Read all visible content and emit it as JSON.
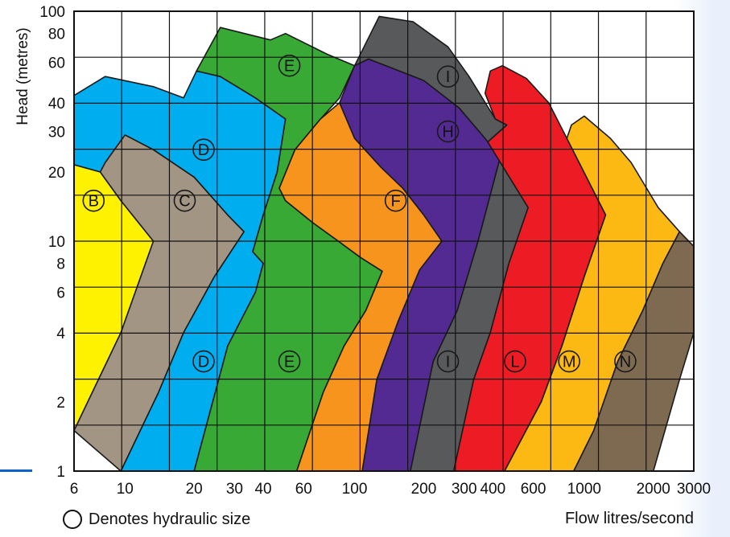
{
  "chart_data": {
    "type": "area",
    "title": "",
    "xlabel": "Flow litres/second",
    "ylabel": "Head (metres)",
    "x_scale": "log",
    "y_scale": "log",
    "xlim": [
      6,
      3000
    ],
    "ylim": [
      1,
      100
    ],
    "grid": true,
    "x_tick_labels": [
      "6",
      "10",
      "20",
      "30",
      "40",
      "60",
      "100",
      "200",
      "300",
      "400",
      "600",
      "1000",
      "2000",
      "3000"
    ],
    "y_tick_labels": [
      "1",
      "2",
      "4",
      "6",
      "8",
      "10",
      "20",
      "30",
      "40",
      "60",
      "80",
      "100"
    ],
    "x_ticks": [
      6,
      10,
      20,
      30,
      40,
      60,
      100,
      200,
      300,
      400,
      600,
      1000,
      2000,
      3000
    ],
    "y_ticks": [
      1,
      2,
      4,
      6,
      8,
      10,
      20,
      30,
      40,
      60,
      80,
      100
    ],
    "series": [
      {
        "name": "B",
        "color": "#fff200",
        "labels": [
          [
            7.3,
            15
          ]
        ],
        "polygon": [
          [
            6,
            21.5
          ],
          [
            7.8,
            20
          ],
          [
            9.6,
            15
          ],
          [
            13.3,
            10
          ],
          [
            9.6,
            4
          ],
          [
            6,
            1.5
          ]
        ]
      },
      {
        "name": "C",
        "color": "#a39584",
        "labels": [
          [
            18.2,
            15
          ]
        ],
        "polygon": [
          [
            6,
            1.5
          ],
          [
            9.6,
            4
          ],
          [
            13.3,
            10
          ],
          [
            9.6,
            15
          ],
          [
            7.8,
            20
          ],
          [
            8.2,
            22
          ],
          [
            10,
            29
          ],
          [
            13.3,
            25
          ],
          [
            20,
            19
          ],
          [
            28,
            13
          ],
          [
            33,
            11
          ],
          [
            24.5,
            7
          ],
          [
            18,
            4
          ],
          [
            14,
            2.2
          ],
          [
            9.6,
            1
          ]
        ]
      },
      {
        "name": "D",
        "color": "#00aeef",
        "labels": [
          [
            22,
            25
          ],
          [
            22,
            3
          ]
        ],
        "polygon": [
          [
            9.6,
            1
          ],
          [
            14,
            2.2
          ],
          [
            18,
            4
          ],
          [
            24.5,
            7
          ],
          [
            33,
            11
          ],
          [
            28,
            13
          ],
          [
            20,
            19
          ],
          [
            13.3,
            25
          ],
          [
            10,
            29
          ],
          [
            8.2,
            22
          ],
          [
            7.8,
            20
          ],
          [
            6,
            21.5
          ],
          [
            6,
            43
          ],
          [
            8.2,
            52
          ],
          [
            13.3,
            47
          ],
          [
            18,
            42
          ],
          [
            20.5,
            55
          ],
          [
            26,
            52
          ],
          [
            37,
            42
          ],
          [
            50,
            34
          ],
          [
            46,
            20
          ],
          [
            40,
            13
          ],
          [
            36,
            9
          ],
          [
            40,
            8
          ],
          [
            37,
            6
          ],
          [
            28,
            3.5
          ],
          [
            20,
            1
          ]
        ]
      },
      {
        "name": "E",
        "color": "#39a935",
        "labels": [
          [
            52,
            58
          ],
          [
            52,
            3
          ]
        ],
        "polygon": [
          [
            20,
            1
          ],
          [
            28,
            3.5
          ],
          [
            37,
            6
          ],
          [
            40,
            8
          ],
          [
            36,
            9
          ],
          [
            40,
            13
          ],
          [
            46,
            20
          ],
          [
            50,
            34
          ],
          [
            37,
            42
          ],
          [
            26,
            52
          ],
          [
            20.5,
            55
          ],
          [
            26,
            85
          ],
          [
            43,
            75
          ],
          [
            50,
            80
          ],
          [
            76,
            65
          ],
          [
            100,
            58
          ],
          [
            86,
            42
          ],
          [
            71,
            34
          ],
          [
            55,
            25
          ],
          [
            47,
            17
          ],
          [
            50,
            15
          ],
          [
            66,
            12
          ],
          [
            85,
            10
          ],
          [
            106,
            8.5
          ],
          [
            132,
            7.4
          ],
          [
            112,
            5
          ],
          [
            90,
            3.5
          ],
          [
            73,
            2.2
          ],
          [
            56,
            1
          ]
        ]
      },
      {
        "name": "F",
        "color": "#f7941d",
        "labels": [
          [
            151,
            15
          ]
        ],
        "polygon": [
          [
            56,
            1
          ],
          [
            73,
            2.2
          ],
          [
            90,
            3.5
          ],
          [
            112,
            5
          ],
          [
            132,
            7.4
          ],
          [
            106,
            8.5
          ],
          [
            85,
            10
          ],
          [
            66,
            12
          ],
          [
            50,
            15
          ],
          [
            47,
            17
          ],
          [
            55,
            25
          ],
          [
            71,
            34
          ],
          [
            86,
            40
          ],
          [
            100,
            28
          ],
          [
            130,
            21
          ],
          [
            162,
            17
          ],
          [
            200,
            13
          ],
          [
            240,
            10
          ],
          [
            192,
            7.5
          ],
          [
            155,
            4.5
          ],
          [
            125,
            2.5
          ],
          [
            108,
            1
          ]
        ]
      },
      {
        "name": "H",
        "color": "#522a91",
        "labels": [
          [
            255,
            30
          ]
        ],
        "polygon": [
          [
            108,
            1
          ],
          [
            125,
            2.5
          ],
          [
            155,
            4.5
          ],
          [
            192,
            7.5
          ],
          [
            240,
            10
          ],
          [
            200,
            13
          ],
          [
            162,
            17
          ],
          [
            130,
            21
          ],
          [
            100,
            28
          ],
          [
            86,
            40
          ],
          [
            100,
            58
          ],
          [
            115,
            62
          ],
          [
            200,
            50
          ],
          [
            285,
            38
          ],
          [
            370,
            28
          ],
          [
            430,
            23
          ],
          [
            345,
            10
          ],
          [
            280,
            5
          ],
          [
            220,
            3
          ],
          [
            175,
            1
          ]
        ]
      },
      {
        "name": "I",
        "color": "#58595b",
        "labels": [
          [
            255,
            52
          ],
          [
            255,
            3
          ]
        ],
        "polygon": [
          [
            175,
            1
          ],
          [
            220,
            3
          ],
          [
            280,
            5
          ],
          [
            345,
            10
          ],
          [
            430,
            23
          ],
          [
            370,
            28
          ],
          [
            285,
            38
          ],
          [
            200,
            50
          ],
          [
            115,
            62
          ],
          [
            100,
            58
          ],
          [
            128,
            95
          ],
          [
            180,
            90
          ],
          [
            255,
            70
          ],
          [
            315,
            52
          ],
          [
            410,
            34
          ],
          [
            460,
            32
          ],
          [
            380,
            27
          ],
          [
            570,
            14
          ],
          [
            470,
            8
          ],
          [
            390,
            4
          ],
          [
            330,
            2.5
          ],
          [
            270,
            1
          ]
        ]
      },
      {
        "name": "L",
        "color": "#ed1c24",
        "labels": [
          [
            500,
            3
          ]
        ],
        "polygon": [
          [
            270,
            1
          ],
          [
            330,
            2.5
          ],
          [
            390,
            4
          ],
          [
            470,
            8
          ],
          [
            570,
            14
          ],
          [
            380,
            27
          ],
          [
            460,
            32
          ],
          [
            410,
            34
          ],
          [
            370,
            44
          ],
          [
            390,
            55
          ],
          [
            440,
            58
          ],
          [
            560,
            51
          ],
          [
            700,
            40
          ],
          [
            840,
            28
          ],
          [
            1240,
            13
          ],
          [
            1000,
            7
          ],
          [
            800,
            3.5
          ],
          [
            650,
            2
          ],
          [
            450,
            1
          ]
        ]
      },
      {
        "name": "M",
        "color": "#fdb913",
        "labels": [
          [
            860,
            3
          ]
        ],
        "polygon": [
          [
            450,
            1
          ],
          [
            650,
            2
          ],
          [
            800,
            3.5
          ],
          [
            1000,
            7
          ],
          [
            1240,
            13
          ],
          [
            840,
            28
          ],
          [
            880,
            32
          ],
          [
            1000,
            35
          ],
          [
            1300,
            28
          ],
          [
            1600,
            22
          ],
          [
            2100,
            14
          ],
          [
            2600,
            11
          ],
          [
            2200,
            8
          ],
          [
            1800,
            5
          ],
          [
            1400,
            3
          ],
          [
            1100,
            1.5
          ],
          [
            900,
            1
          ]
        ]
      },
      {
        "name": "N",
        "color": "#7e6a50",
        "labels": [
          [
            1510,
            3
          ]
        ],
        "polygon": [
          [
            900,
            1
          ],
          [
            1100,
            1.5
          ],
          [
            1400,
            3
          ],
          [
            1800,
            5
          ],
          [
            2200,
            8
          ],
          [
            2600,
            11
          ],
          [
            3000,
            9.5
          ],
          [
            3000,
            4
          ],
          [
            2600,
            2.5
          ],
          [
            2000,
            1
          ]
        ]
      }
    ]
  },
  "footnote": {
    "text": "Denotes hydraulic size"
  }
}
